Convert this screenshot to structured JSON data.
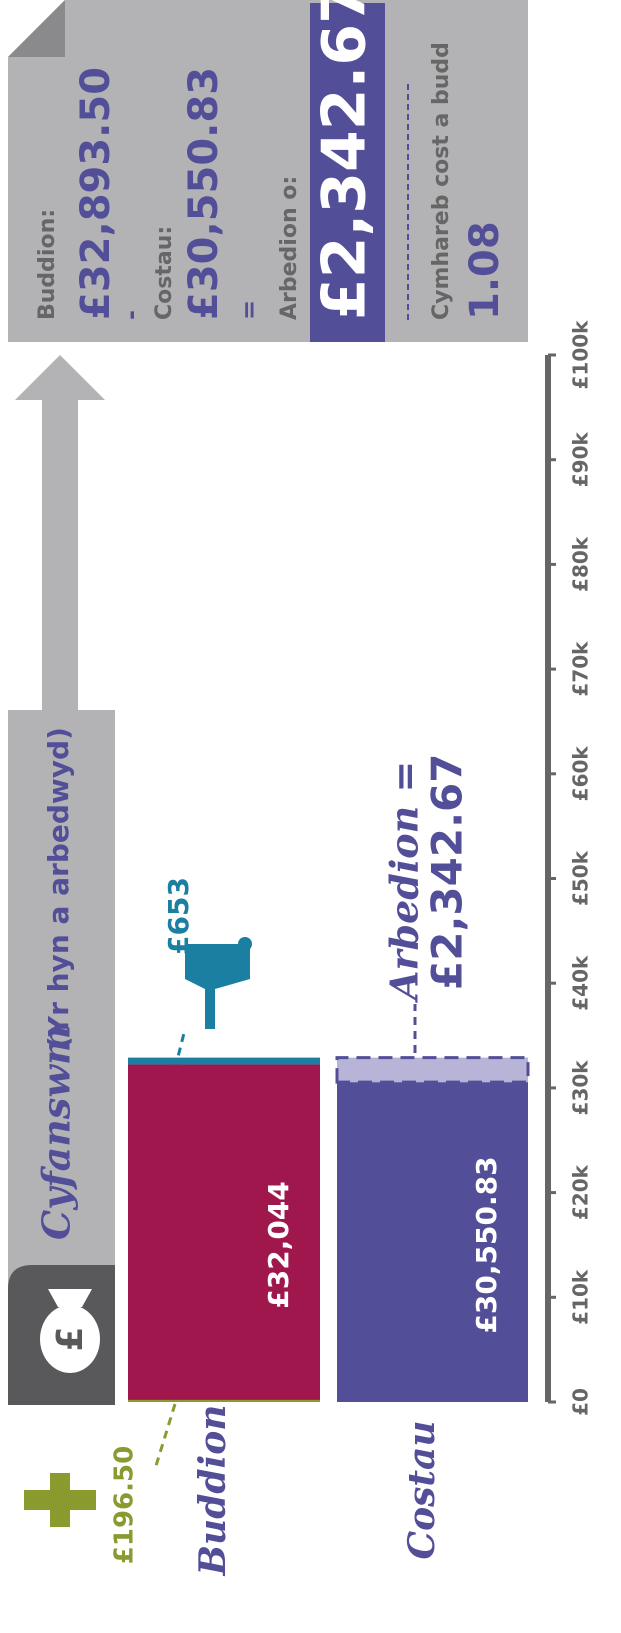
{
  "chart_data": {
    "type": "bar",
    "stacked": true,
    "title": "Cyfanswm",
    "subtitle": "(Yr hyn a arbedwyd)",
    "badge": "£",
    "categories": [
      "Buddion",
      "Costau"
    ],
    "series": [
      {
        "color": "#8b9a2e",
        "values": [
          196.5,
          null
        ],
        "value_labels": [
          "£196.50",
          null
        ]
      },
      {
        "colors": [
          "#a0174e",
          "#524f98"
        ],
        "values": [
          32044,
          30550.83
        ],
        "value_labels": [
          "£32,044",
          "£30,550.83"
        ]
      },
      {
        "colors": [
          "#1a7fa0",
          "#b7b4d8"
        ],
        "styles": [
          "solid",
          "dashed"
        ],
        "values": [
          653,
          2342.67
        ],
        "value_labels": [
          "£653",
          "£2,342.67"
        ]
      }
    ],
    "annotations": [
      {
        "text": "Arbedion ="
      }
    ],
    "ylim": [
      0,
      100000
    ],
    "yticks": [
      {
        "value": 0,
        "label": "£0"
      },
      {
        "value": 10000,
        "label": "£10k"
      },
      {
        "value": 20000,
        "label": "£20k"
      },
      {
        "value": 30000,
        "label": "£30k"
      },
      {
        "value": 40000,
        "label": "£40k"
      },
      {
        "value": 50000,
        "label": "£50k"
      },
      {
        "value": 60000,
        "label": "£60k"
      },
      {
        "value": 70000,
        "label": "£70k"
      },
      {
        "value": 80000,
        "label": "£80k"
      },
      {
        "value": 90000,
        "label": "£90k"
      },
      {
        "value": 100000,
        "label": "£100k"
      }
    ]
  },
  "summary": {
    "benefit_label": "Buddion:",
    "benefit": "£32,893.50",
    "minus": "-",
    "cost_label": "Costau:",
    "cost": "£30,550.83",
    "equals": "=",
    "saving_label": "Arbedion o:",
    "saving": "£2,342.67",
    "ratio_label": "Cymhareb cost a budd",
    "ratio": "1.08"
  }
}
